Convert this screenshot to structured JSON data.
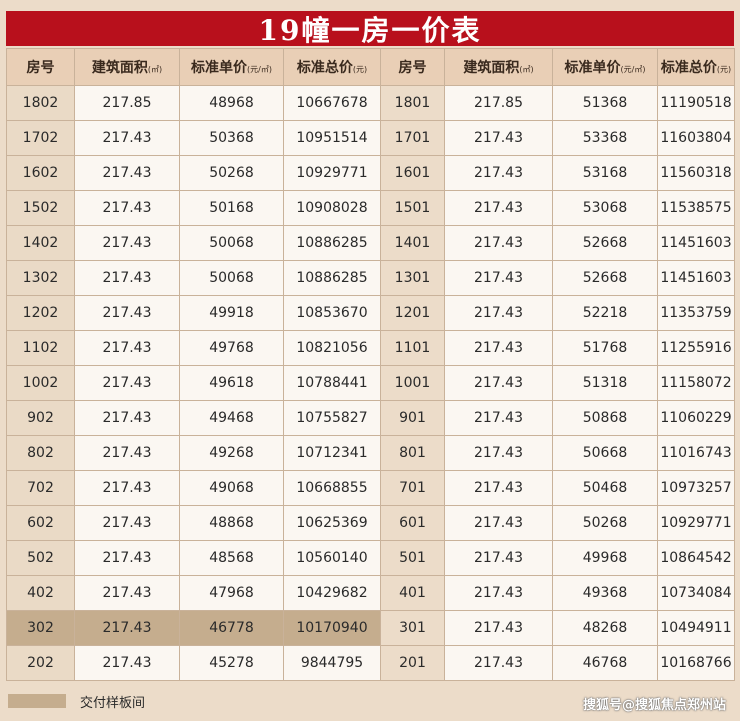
{
  "title": "19幢一房一价表",
  "headers": {
    "room": "房号",
    "area": "建筑面积",
    "area_unit": "(㎡)",
    "unit_price": "标准单价",
    "unit_price_unit": "(元/㎡)",
    "total_price": "标准总价",
    "total_price_unit": "(元)"
  },
  "rows": [
    {
      "left": {
        "room": "1802",
        "area": "217.85",
        "unit": "48968",
        "total": "10667678"
      },
      "right": {
        "room": "1801",
        "area": "217.85",
        "unit": "51368",
        "total": "11190518"
      }
    },
    {
      "left": {
        "room": "1702",
        "area": "217.43",
        "unit": "50368",
        "total": "10951514"
      },
      "right": {
        "room": "1701",
        "area": "217.43",
        "unit": "53368",
        "total": "11603804"
      }
    },
    {
      "left": {
        "room": "1602",
        "area": "217.43",
        "unit": "50268",
        "total": "10929771"
      },
      "right": {
        "room": "1601",
        "area": "217.43",
        "unit": "53168",
        "total": "11560318"
      }
    },
    {
      "left": {
        "room": "1502",
        "area": "217.43",
        "unit": "50168",
        "total": "10908028"
      },
      "right": {
        "room": "1501",
        "area": "217.43",
        "unit": "53068",
        "total": "11538575"
      }
    },
    {
      "left": {
        "room": "1402",
        "area": "217.43",
        "unit": "50068",
        "total": "10886285"
      },
      "right": {
        "room": "1401",
        "area": "217.43",
        "unit": "52668",
        "total": "11451603"
      }
    },
    {
      "left": {
        "room": "1302",
        "area": "217.43",
        "unit": "50068",
        "total": "10886285"
      },
      "right": {
        "room": "1301",
        "area": "217.43",
        "unit": "52668",
        "total": "11451603"
      }
    },
    {
      "left": {
        "room": "1202",
        "area": "217.43",
        "unit": "49918",
        "total": "10853670"
      },
      "right": {
        "room": "1201",
        "area": "217.43",
        "unit": "52218",
        "total": "11353759"
      }
    },
    {
      "left": {
        "room": "1102",
        "area": "217.43",
        "unit": "49768",
        "total": "10821056"
      },
      "right": {
        "room": "1101",
        "area": "217.43",
        "unit": "51768",
        "total": "11255916"
      }
    },
    {
      "left": {
        "room": "1002",
        "area": "217.43",
        "unit": "49618",
        "total": "10788441"
      },
      "right": {
        "room": "1001",
        "area": "217.43",
        "unit": "51318",
        "total": "11158072"
      }
    },
    {
      "left": {
        "room": "902",
        "area": "217.43",
        "unit": "49468",
        "total": "10755827"
      },
      "right": {
        "room": "901",
        "area": "217.43",
        "unit": "50868",
        "total": "11060229"
      }
    },
    {
      "left": {
        "room": "802",
        "area": "217.43",
        "unit": "49268",
        "total": "10712341"
      },
      "right": {
        "room": "801",
        "area": "217.43",
        "unit": "50668",
        "total": "11016743"
      }
    },
    {
      "left": {
        "room": "702",
        "area": "217.43",
        "unit": "49068",
        "total": "10668855"
      },
      "right": {
        "room": "701",
        "area": "217.43",
        "unit": "50468",
        "total": "10973257"
      }
    },
    {
      "left": {
        "room": "602",
        "area": "217.43",
        "unit": "48868",
        "total": "10625369"
      },
      "right": {
        "room": "601",
        "area": "217.43",
        "unit": "50268",
        "total": "10929771"
      }
    },
    {
      "left": {
        "room": "502",
        "area": "217.43",
        "unit": "48568",
        "total": "10560140"
      },
      "right": {
        "room": "501",
        "area": "217.43",
        "unit": "49968",
        "total": "10864542"
      }
    },
    {
      "left": {
        "room": "402",
        "area": "217.43",
        "unit": "47968",
        "total": "10429682"
      },
      "right": {
        "room": "401",
        "area": "217.43",
        "unit": "49368",
        "total": "10734084"
      }
    },
    {
      "left": {
        "room": "302",
        "area": "217.43",
        "unit": "46778",
        "total": "10170940",
        "sample": true
      },
      "right": {
        "room": "301",
        "area": "217.43",
        "unit": "48268",
        "total": "10494911"
      }
    },
    {
      "left": {
        "room": "202",
        "area": "217.43",
        "unit": "45278",
        "total": "9844795"
      },
      "right": {
        "room": "201",
        "area": "217.43",
        "unit": "46768",
        "total": "10168766"
      }
    }
  ],
  "legend": {
    "label": "交付样板间",
    "swatch_color": "#c5ad8e"
  },
  "watermark": "搜狐号@搜狐焦点郑州站",
  "colors": {
    "title_bg": "#b8101c",
    "header_bg": "#e9cfb6",
    "cell_bg": "#fbf7f2",
    "page_bg": "#ecdcc9"
  }
}
